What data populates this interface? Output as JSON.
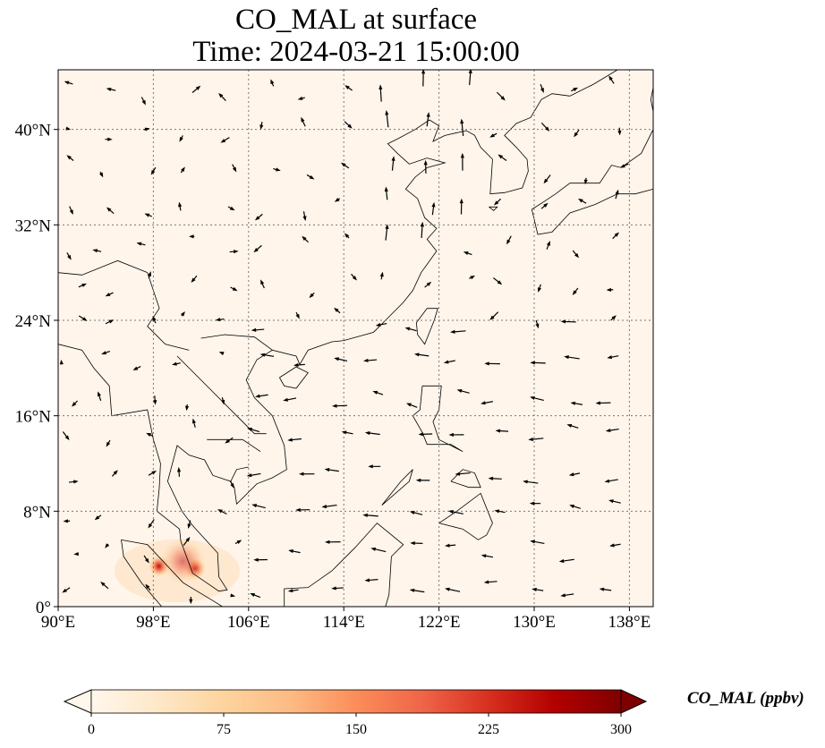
{
  "title_line1": "CO_MAL at surface",
  "title_line2": "Time: 2024-03-21 15:00:00",
  "chart_data": {
    "type": "heatmap",
    "title": "CO_MAL at surface / Time: 2024-03-21 15:00:00",
    "lon_range": [
      90,
      140
    ],
    "lat_range": [
      0,
      45
    ],
    "x_ticks": [
      "90°E",
      "98°E",
      "106°E",
      "114°E",
      "122°E",
      "130°E",
      "138°E"
    ],
    "x_tick_values": [
      90,
      98,
      106,
      114,
      122,
      130,
      138
    ],
    "y_ticks": [
      "0°",
      "8°N",
      "16°N",
      "24°N",
      "32°N",
      "40°N"
    ],
    "y_tick_values": [
      0,
      8,
      16,
      24,
      32,
      40
    ],
    "grid": "dotted",
    "background_value": 0,
    "hotspots": [
      {
        "lon": 98.5,
        "lat": 3.4,
        "value": 300
      },
      {
        "lon": 101.5,
        "lat": 3.2,
        "value": 260
      },
      {
        "lon": 100.5,
        "lat": 3.8,
        "value": 60
      }
    ],
    "overlay": "wind vectors (arrows)",
    "colorbar": {
      "label": "CO_MAL (ppbv)",
      "range": [
        0,
        300
      ],
      "ticks": [
        "0",
        "75",
        "150",
        "225",
        "300"
      ],
      "colormap": [
        "#fff7ec",
        "#fee8c8",
        "#fdd49e",
        "#fdbb84",
        "#fc8d59",
        "#ef6548",
        "#d7301f",
        "#b30000",
        "#7f0000"
      ],
      "extend": "both"
    }
  }
}
